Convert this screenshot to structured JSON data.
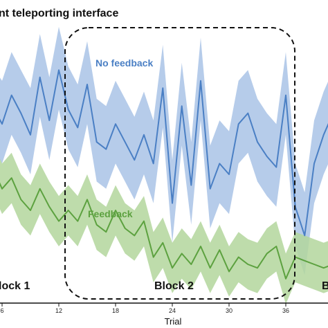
{
  "chart_data": {
    "type": "line",
    "title": "nt teleporting interface",
    "xlabel": "Trial",
    "ylabel": "",
    "xlim": [
      5.5,
      42
    ],
    "ylim": [
      0,
      1
    ],
    "x_ticks": [
      6,
      12,
      18,
      24,
      30,
      36
    ],
    "x": [
      5,
      6,
      7,
      8,
      9,
      10,
      11,
      12,
      13,
      14,
      15,
      16,
      17,
      18,
      19,
      20,
      21,
      22,
      23,
      24,
      25,
      26,
      27,
      28,
      29,
      30,
      31,
      32,
      33,
      34,
      35,
      36,
      37,
      38,
      39,
      40,
      41,
      42
    ],
    "series": [
      {
        "name": "No feedback",
        "color": "#4a7fc4",
        "band_color": "#a9c3e6",
        "values": [
          0.59,
          0.54,
          0.62,
          0.57,
          0.51,
          0.67,
          0.55,
          0.69,
          0.58,
          0.53,
          0.65,
          0.49,
          0.47,
          0.54,
          0.49,
          0.44,
          0.51,
          0.43,
          0.64,
          0.32,
          0.59,
          0.37,
          0.66,
          0.36,
          0.43,
          0.4,
          0.54,
          0.57,
          0.49,
          0.45,
          0.42,
          0.62,
          0.31,
          0.23,
          0.43,
          0.51,
          0.57,
          0.52
        ],
        "upper": [
          0.7,
          0.66,
          0.74,
          0.69,
          0.64,
          0.79,
          0.67,
          0.81,
          0.7,
          0.65,
          0.77,
          0.61,
          0.59,
          0.66,
          0.61,
          0.56,
          0.63,
          0.55,
          0.76,
          0.44,
          0.71,
          0.49,
          0.78,
          0.48,
          0.55,
          0.52,
          0.66,
          0.69,
          0.61,
          0.57,
          0.54,
          0.74,
          0.43,
          0.35,
          0.55,
          0.63,
          0.69,
          0.64
        ],
        "lower": [
          0.48,
          0.43,
          0.51,
          0.46,
          0.4,
          0.56,
          0.44,
          0.58,
          0.47,
          0.42,
          0.54,
          0.38,
          0.36,
          0.43,
          0.38,
          0.33,
          0.4,
          0.32,
          0.53,
          0.21,
          0.48,
          0.26,
          0.55,
          0.25,
          0.32,
          0.29,
          0.43,
          0.46,
          0.38,
          0.34,
          0.31,
          0.51,
          0.2,
          0.12,
          0.32,
          0.4,
          0.46,
          0.41
        ]
      },
      {
        "name": "Feedback",
        "color": "#5ca13f",
        "band_color": "#b3d69c",
        "values": [
          0.42,
          0.36,
          0.39,
          0.33,
          0.3,
          0.36,
          0.31,
          0.27,
          0.3,
          0.27,
          0.33,
          0.26,
          0.24,
          0.3,
          0.25,
          0.23,
          0.27,
          0.17,
          0.21,
          0.14,
          0.18,
          0.15,
          0.2,
          0.14,
          0.19,
          0.13,
          0.17,
          0.15,
          0.14,
          0.18,
          0.2,
          0.11,
          0.17,
          0.16,
          0.15,
          0.14,
          0.15,
          0.14
        ],
        "upper": [
          0.49,
          0.43,
          0.46,
          0.4,
          0.37,
          0.43,
          0.38,
          0.34,
          0.37,
          0.34,
          0.4,
          0.33,
          0.31,
          0.37,
          0.32,
          0.3,
          0.34,
          0.24,
          0.28,
          0.21,
          0.25,
          0.22,
          0.27,
          0.21,
          0.26,
          0.2,
          0.24,
          0.22,
          0.21,
          0.25,
          0.27,
          0.18,
          0.24,
          0.23,
          0.22,
          0.21,
          0.22,
          0.21
        ],
        "lower": [
          0.35,
          0.29,
          0.32,
          0.26,
          0.23,
          0.29,
          0.24,
          0.2,
          0.23,
          0.2,
          0.26,
          0.19,
          0.17,
          0.23,
          0.18,
          0.16,
          0.2,
          0.1,
          0.14,
          0.07,
          0.11,
          0.08,
          0.13,
          0.07,
          0.12,
          0.06,
          0.1,
          0.08,
          0.07,
          0.11,
          0.13,
          0.04,
          0.1,
          0.09,
          0.08,
          0.07,
          0.08,
          0.07
        ]
      }
    ],
    "annotations": [
      {
        "text": "lock 1",
        "kind": "block-label"
      },
      {
        "text": "Block 2",
        "kind": "block-label",
        "boxed": true
      },
      {
        "text": "B",
        "kind": "block-label"
      }
    ],
    "grid": false,
    "legend": "inline labels"
  }
}
